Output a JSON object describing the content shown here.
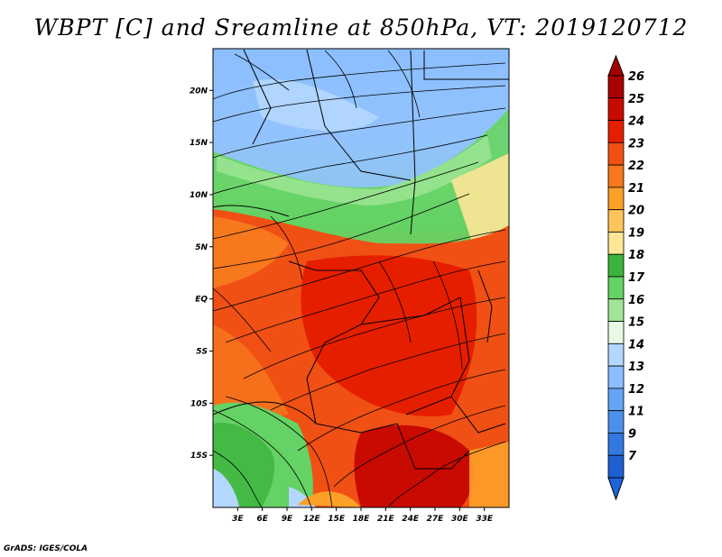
{
  "title": "WBPT [C] and Sreamline at 850hPa, VT: 2019120712",
  "footer": "GrADS: IGES/COLA",
  "map": {
    "lon_range": [
      0,
      36
    ],
    "lat_range": [
      -20,
      24
    ],
    "lon_ticks": [
      {
        "value": 3,
        "label": "3E"
      },
      {
        "value": 6,
        "label": "6E"
      },
      {
        "value": 9,
        "label": "9E"
      },
      {
        "value": 12,
        "label": "12E"
      },
      {
        "value": 15,
        "label": "15E"
      },
      {
        "value": 18,
        "label": "18E"
      },
      {
        "value": 21,
        "label": "21E"
      },
      {
        "value": 24,
        "label": "24E"
      },
      {
        "value": 27,
        "label": "27E"
      },
      {
        "value": 30,
        "label": "30E"
      },
      {
        "value": 33,
        "label": "33E"
      }
    ],
    "lat_ticks": [
      {
        "value": 20,
        "label": "20N"
      },
      {
        "value": 15,
        "label": "15N"
      },
      {
        "value": 10,
        "label": "10N"
      },
      {
        "value": 5,
        "label": "5N"
      },
      {
        "value": 0,
        "label": "EQ"
      },
      {
        "value": -5,
        "label": "5S"
      },
      {
        "value": -10,
        "label": "10S"
      },
      {
        "value": -15,
        "label": "15S"
      }
    ]
  },
  "colorbar": {
    "levels": [
      {
        "label": "26",
        "color": "#a60000"
      },
      {
        "label": "25",
        "color": "#c80a00"
      },
      {
        "label": "24",
        "color": "#e61e00"
      },
      {
        "label": "23",
        "color": "#f05014"
      },
      {
        "label": "22",
        "color": "#f8781e"
      },
      {
        "label": "21",
        "color": "#fca028"
      },
      {
        "label": "20",
        "color": "#fdc45a"
      },
      {
        "label": "19",
        "color": "#fde696"
      },
      {
        "label": "18",
        "color": "#3cb43c"
      },
      {
        "label": "17",
        "color": "#64d264"
      },
      {
        "label": "16",
        "color": "#a0e696"
      },
      {
        "label": "15",
        "color": "#e6fae6"
      },
      {
        "label": "14",
        "color": "#b4d7ff"
      },
      {
        "label": "13",
        "color": "#8cbeff"
      },
      {
        "label": "12",
        "color": "#64a5f5"
      },
      {
        "label": "11",
        "color": "#4b91eb"
      },
      {
        "label": "9",
        "color": "#3278e1"
      },
      {
        "label": "7",
        "color": "#1e5fd2"
      }
    ],
    "over_color": "#a00000",
    "under_color": "#1e64dc"
  }
}
